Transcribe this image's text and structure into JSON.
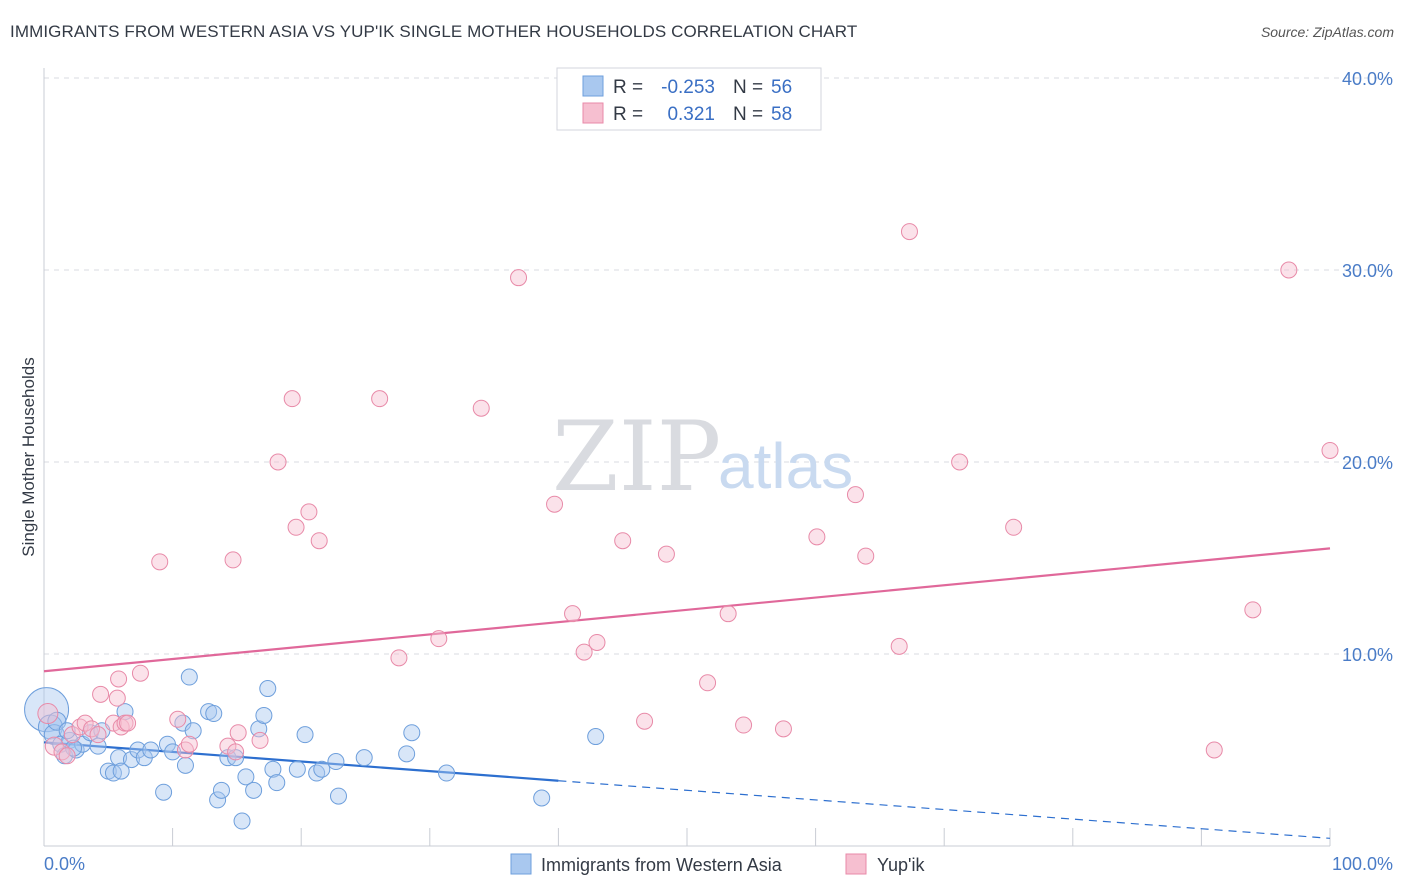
{
  "title": "IMMIGRANTS FROM WESTERN ASIA VS YUP'IK SINGLE MOTHER HOUSEHOLDS CORRELATION CHART",
  "source": "Source: ZipAtlas.com",
  "watermark": {
    "zip": "ZIP",
    "atlas": "atlas"
  },
  "legend": {
    "rows": [
      {
        "r_label": "R =",
        "r_value": "-0.253",
        "n_label": "N =",
        "n_value": "56"
      },
      {
        "r_label": "R =",
        "r_value": "0.321",
        "n_label": "N =",
        "n_value": "58"
      }
    ]
  },
  "bottom_legend": [
    "Immigrants from Western Asia",
    "Yup'ik"
  ],
  "colors": {
    "blue_fill": "#a9c8ef",
    "blue_stroke": "#6e9fdc",
    "blue_line": "#2d6fcf",
    "pink_fill": "#f6bfd0",
    "pink_stroke": "#e88aa8",
    "pink_line": "#e0689a",
    "grid": "#d8dbe2",
    "axis_text": "#4a7cc7"
  },
  "chart_data": {
    "type": "scatter",
    "title": "IMMIGRANTS FROM WESTERN ASIA VS YUP'IK SINGLE MOTHER HOUSEHOLDS CORRELATION CHART",
    "xlabel": "",
    "ylabel": "Single Mother Households",
    "xlim": [
      0,
      100
    ],
    "ylim": [
      0,
      40
    ],
    "x_tick_labels": [
      "0.0%",
      "100.0%"
    ],
    "y_ticks": [
      10,
      20,
      30,
      40
    ],
    "y_tick_labels": [
      "10.0%",
      "20.0%",
      "30.0%",
      "40.0%"
    ],
    "series": [
      {
        "name": "Immigrants from Western Asia",
        "color": "blue",
        "r": -0.253,
        "n": 56,
        "trend": {
          "x0": 0,
          "y0": 5.4,
          "x1": 40,
          "y1": 3.4,
          "x_dash_end": 100,
          "y_dash_end": 0.4
        },
        "points": [
          [
            0.2,
            7.1,
            22
          ],
          [
            0.5,
            6.2,
            12
          ],
          [
            0.8,
            5.8,
            10
          ],
          [
            1.0,
            6.5,
            9
          ],
          [
            1.3,
            5.3,
            8
          ],
          [
            1.6,
            4.7,
            8
          ],
          [
            2.0,
            5.5,
            8
          ],
          [
            2.5,
            5.0,
            8
          ],
          [
            3.0,
            5.3,
            8
          ],
          [
            3.6,
            5.9,
            8
          ],
          [
            4.2,
            5.2,
            8
          ],
          [
            4.5,
            6.0,
            8
          ],
          [
            5.0,
            3.9,
            8
          ],
          [
            5.4,
            3.8,
            8
          ],
          [
            5.8,
            4.6,
            8
          ],
          [
            6.3,
            7.0,
            8
          ],
          [
            6.8,
            4.5,
            8
          ],
          [
            7.3,
            5.0,
            8
          ],
          [
            7.8,
            4.6,
            8
          ],
          [
            8.3,
            5.0,
            8
          ],
          [
            9.3,
            2.8,
            8
          ],
          [
            9.6,
            5.3,
            8
          ],
          [
            10.0,
            4.9,
            8
          ],
          [
            10.8,
            6.4,
            8
          ],
          [
            11.0,
            4.2,
            8
          ],
          [
            11.3,
            8.8,
            8
          ],
          [
            11.6,
            6.0,
            8
          ],
          [
            12.8,
            7.0,
            8
          ],
          [
            13.2,
            6.9,
            8
          ],
          [
            13.5,
            2.4,
            8
          ],
          [
            13.8,
            2.9,
            8
          ],
          [
            14.3,
            4.6,
            8
          ],
          [
            14.9,
            4.6,
            8
          ],
          [
            15.4,
            1.3,
            8
          ],
          [
            15.7,
            3.6,
            8
          ],
          [
            16.3,
            2.9,
            8
          ],
          [
            16.7,
            6.1,
            8
          ],
          [
            17.1,
            6.8,
            8
          ],
          [
            17.4,
            8.2,
            8
          ],
          [
            17.8,
            4.0,
            8
          ],
          [
            18.1,
            3.3,
            8
          ],
          [
            19.7,
            4.0,
            8
          ],
          [
            20.3,
            5.8,
            8
          ],
          [
            21.2,
            3.8,
            8
          ],
          [
            21.6,
            4.0,
            8
          ],
          [
            22.7,
            4.4,
            8
          ],
          [
            22.9,
            2.6,
            8
          ],
          [
            24.9,
            4.6,
            8
          ],
          [
            28.2,
            4.8,
            8
          ],
          [
            28.6,
            5.9,
            8
          ],
          [
            31.3,
            3.8,
            8
          ],
          [
            38.7,
            2.5,
            8
          ],
          [
            42.9,
            5.7,
            8
          ],
          [
            1.8,
            6.0,
            8
          ],
          [
            2.3,
            5.1,
            8
          ],
          [
            6.0,
            3.9,
            8
          ]
        ]
      },
      {
        "name": "Yup'ik",
        "color": "pink",
        "r": 0.321,
        "n": 58,
        "trend": {
          "x0": 0,
          "y0": 9.1,
          "x1": 100,
          "y1": 15.5
        },
        "points": [
          [
            0.3,
            6.9,
            10
          ],
          [
            0.8,
            5.2,
            9
          ],
          [
            1.4,
            4.9,
            8
          ],
          [
            1.8,
            4.7,
            8
          ],
          [
            2.2,
            5.8,
            8
          ],
          [
            2.8,
            6.2,
            8
          ],
          [
            3.2,
            6.4,
            8
          ],
          [
            3.7,
            6.1,
            8
          ],
          [
            4.2,
            5.8,
            8
          ],
          [
            4.4,
            7.9,
            8
          ],
          [
            5.4,
            6.4,
            8
          ],
          [
            5.7,
            7.7,
            8
          ],
          [
            5.8,
            8.7,
            8
          ],
          [
            6.0,
            6.2,
            8
          ],
          [
            6.3,
            6.4,
            8
          ],
          [
            6.5,
            6.4,
            8
          ],
          [
            7.5,
            9.0,
            8
          ],
          [
            9.0,
            14.8,
            8
          ],
          [
            10.4,
            6.6,
            8
          ],
          [
            11.0,
            5.0,
            8
          ],
          [
            11.3,
            5.3,
            8
          ],
          [
            14.3,
            5.2,
            8
          ],
          [
            14.7,
            14.9,
            8
          ],
          [
            14.9,
            4.9,
            8
          ],
          [
            15.1,
            5.9,
            8
          ],
          [
            16.8,
            5.5,
            8
          ],
          [
            18.2,
            20.0,
            8
          ],
          [
            19.3,
            23.3,
            8
          ],
          [
            19.6,
            16.6,
            8
          ],
          [
            20.6,
            17.4,
            8
          ],
          [
            21.4,
            15.9,
            8
          ],
          [
            26.1,
            23.3,
            8
          ],
          [
            27.6,
            9.8,
            8
          ],
          [
            30.7,
            10.8,
            8
          ],
          [
            34.0,
            22.8,
            8
          ],
          [
            36.9,
            29.6,
            8
          ],
          [
            39.7,
            17.8,
            8
          ],
          [
            41.1,
            12.1,
            8
          ],
          [
            42.0,
            10.1,
            8
          ],
          [
            43.0,
            10.6,
            8
          ],
          [
            45.0,
            15.9,
            8
          ],
          [
            46.7,
            6.5,
            8
          ],
          [
            48.4,
            15.2,
            8
          ],
          [
            51.6,
            8.5,
            8
          ],
          [
            53.2,
            12.1,
            8
          ],
          [
            54.4,
            6.3,
            8
          ],
          [
            57.5,
            6.1,
            8
          ],
          [
            60.1,
            16.1,
            8
          ],
          [
            63.1,
            18.3,
            8
          ],
          [
            63.9,
            15.1,
            8
          ],
          [
            66.5,
            10.4,
            8
          ],
          [
            67.3,
            32.0,
            8
          ],
          [
            71.2,
            20.0,
            8
          ],
          [
            75.4,
            16.6,
            8
          ],
          [
            91.0,
            5.0,
            8
          ],
          [
            94.0,
            12.3,
            8
          ],
          [
            96.8,
            30.0,
            8
          ],
          [
            100.0,
            20.6,
            8
          ]
        ]
      }
    ]
  }
}
